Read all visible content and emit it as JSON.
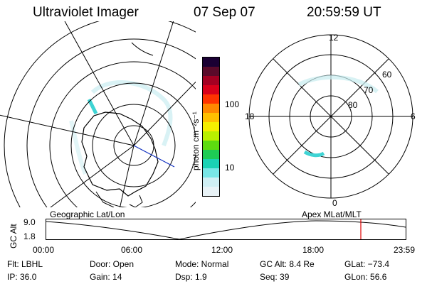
{
  "header": {
    "title": "Ultraviolet Imager",
    "date": "07 Sep 07",
    "time": "20:59:59 UT"
  },
  "left_panel": {
    "caption": "Geographic Lat/Lon"
  },
  "right_panel": {
    "caption": "Apex MLat/MLT",
    "hour_labels": {
      "top": "12",
      "bottom": "0",
      "left": "18",
      "right": "6"
    },
    "lat_labels": [
      "60",
      "70",
      "80"
    ]
  },
  "colorbar": {
    "unit_label": "photon cm⁻²s⁻¹",
    "ticks": [
      "100",
      "10"
    ],
    "colors": [
      "#1a0033",
      "#5a0a2a",
      "#a30022",
      "#d9001a",
      "#ff3300",
      "#ff8800",
      "#ffc000",
      "#f5ee00",
      "#b9f000",
      "#5ddc10",
      "#1ecc55",
      "#1ad2b4",
      "#78e6e6",
      "#cfeff4",
      "#e9f3f7"
    ]
  },
  "altitude_plot": {
    "y_label": "GC Alt",
    "y_ticks": [
      "9.0",
      "1.8"
    ],
    "x_ticks": [
      "00:00",
      "06:00",
      "12:00",
      "18:00",
      "23:59"
    ],
    "current_time_marker_color": "#e00000"
  },
  "info": {
    "filter": "Flt: LBHL",
    "ip": "IP: 36.0",
    "door": "Door: Open",
    "gain": "Gain: 14",
    "mode": "Mode: Normal",
    "dsp": "Dsp:    1.9",
    "gc_alt": "GC Alt: 8.4 Re",
    "seq": "Seq: 39",
    "glat": "GLat: −73.4",
    "glon": "GLon:  56.6"
  }
}
